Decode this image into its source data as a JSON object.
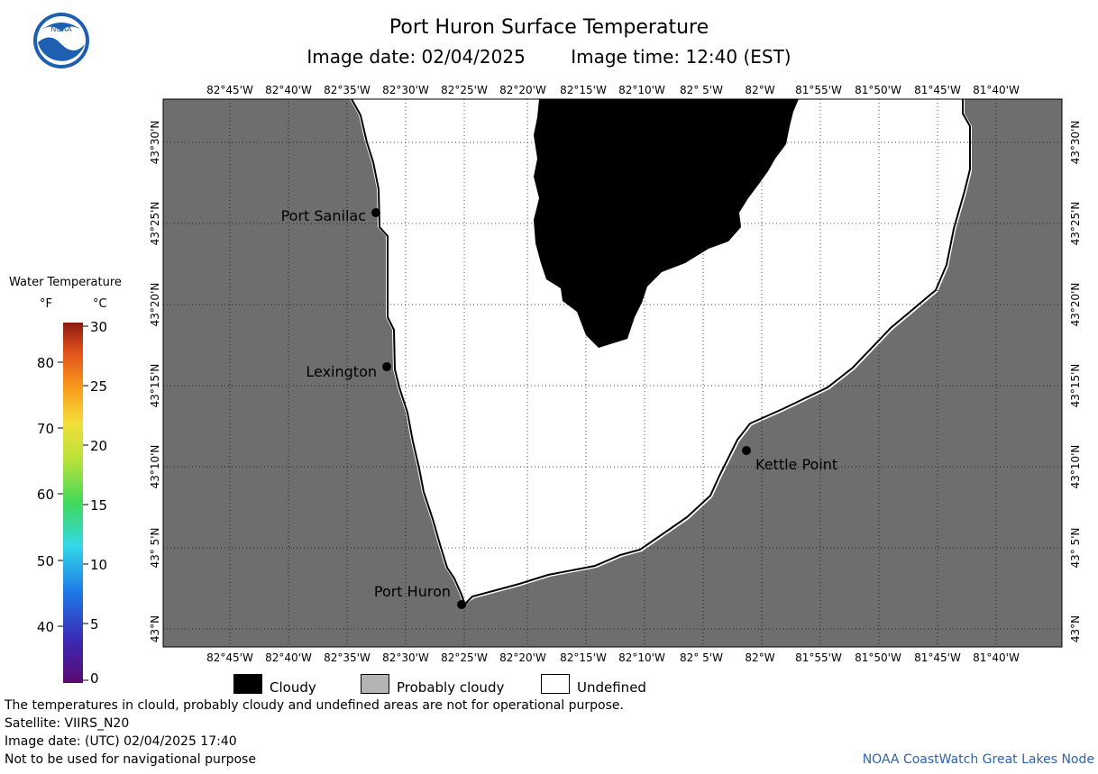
{
  "header": {
    "title": "Port Huron Surface Temperature",
    "image_date": "Image date: 02/04/2025",
    "image_time": "Image time: 12:40 (EST)"
  },
  "logo": {
    "icon": "noaa-logo-icon",
    "text": "NOAA"
  },
  "map": {
    "lon_labels": [
      "82°45'W",
      "82°40'W",
      "82°35'W",
      "82°30'W",
      "82°25'W",
      "82°20'W",
      "82°15'W",
      "82°10'W",
      "82° 5'W",
      "82°W",
      "81°55'W",
      "81°50'W",
      "81°45'W",
      "81°40'W"
    ],
    "lat_labels": [
      "43°30'N",
      "43°25'N",
      "43°20'N",
      "43°15'N",
      "43°10'N",
      "43° 5'N",
      "43°N"
    ],
    "colors": {
      "land": "#6e6e6e",
      "undefined": "#ffffff",
      "cloudy": "#000000"
    },
    "places": [
      {
        "name": "Port Sanilac"
      },
      {
        "name": "Lexington"
      },
      {
        "name": "Kettle Point"
      },
      {
        "name": "Port Huron"
      }
    ]
  },
  "colorbar": {
    "title": "Water Temperature",
    "f_unit": "°F",
    "c_unit": "°C",
    "f_ticks": [
      "80",
      "70",
      "60",
      "50",
      "40"
    ],
    "c_ticks": [
      "30",
      "25",
      "20",
      "15",
      "10",
      "5",
      "0"
    ]
  },
  "legend": {
    "cloudy": "Cloudy",
    "probably_cloudy": "Probably cloudy",
    "undefined": "Undefined",
    "colors": {
      "cloudy": "#000000",
      "probably_cloudy": "#b4b4b4",
      "undefined": "#ffffff"
    }
  },
  "footer": {
    "note": "The temperatures in clould, probably cloudy and undefined areas are not for operational purpose.",
    "satellite": "Satellite: VIIRS_N20",
    "utc_date": "Image date: (UTC) 02/04/2025  17:40",
    "nav": "Not to be used for navigational purpose",
    "credit": "NOAA CoastWatch Great Lakes Node"
  }
}
